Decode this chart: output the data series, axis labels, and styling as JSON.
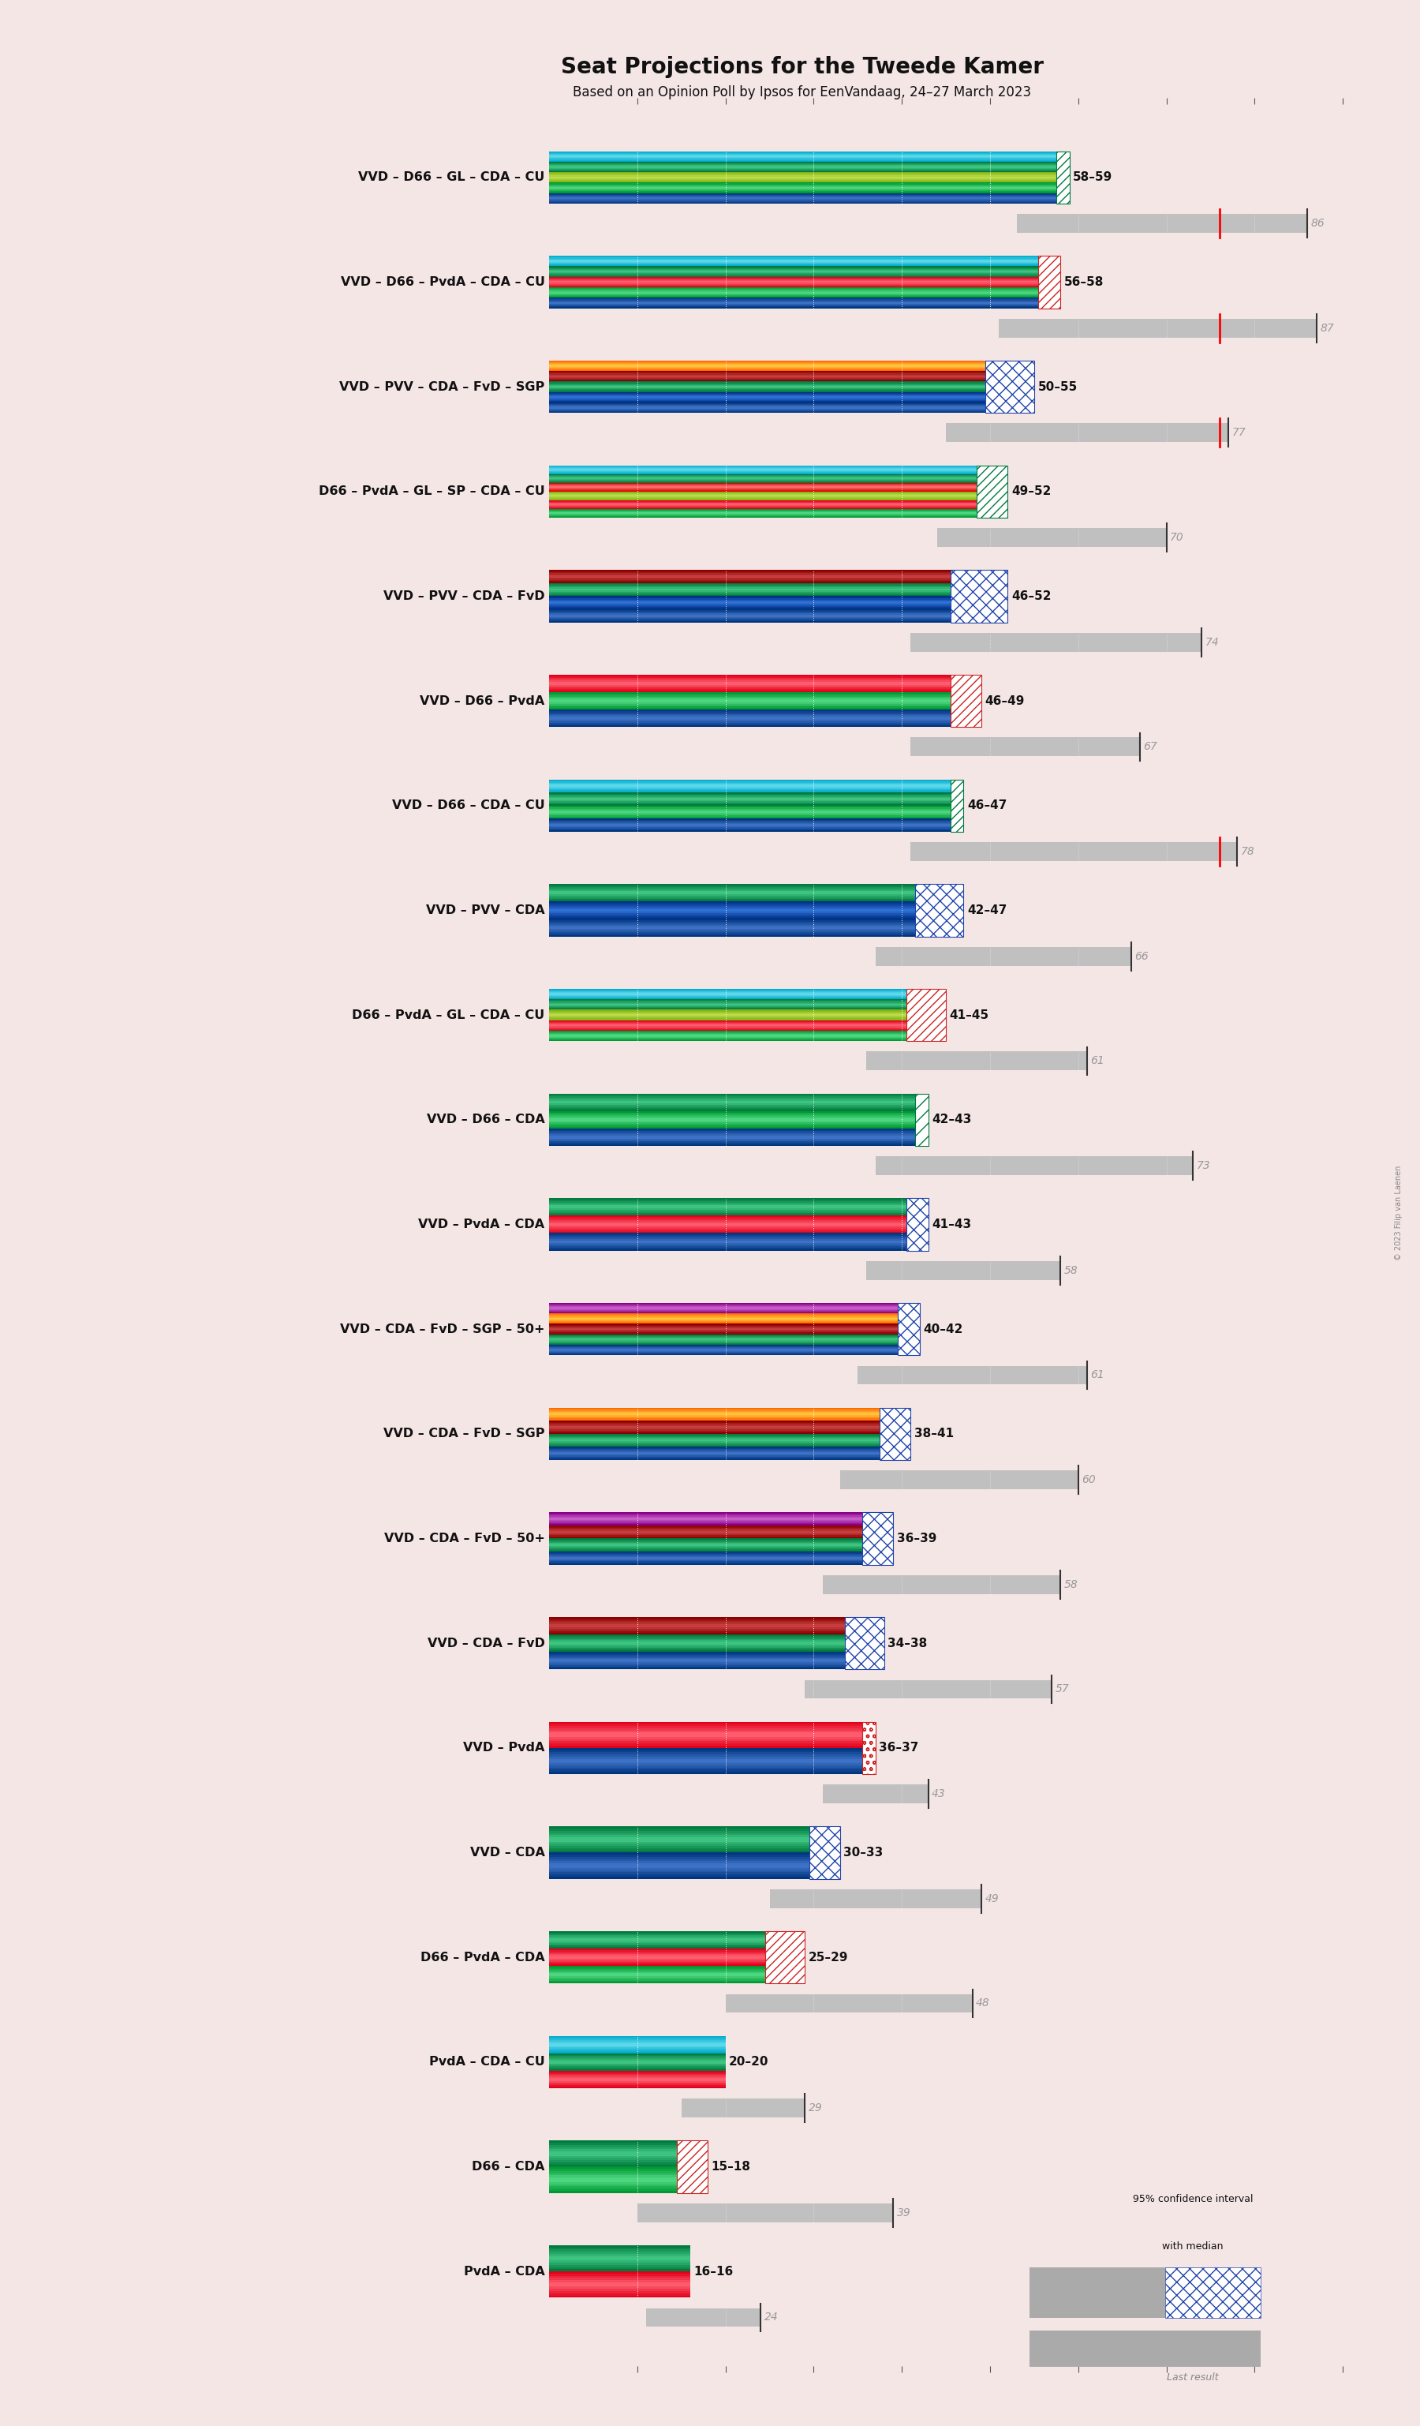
{
  "title": "Seat Projections for the Tweede Kamer",
  "subtitle": "Based on an Opinion Poll by Ipsos for EenVandaag, 24–27 March 2023",
  "bg": "#f5e6e6",
  "coalitions": [
    {
      "label": "VVD – D66 – GL – CDA – CU",
      "lo": 58,
      "hi": 59,
      "last": 86,
      "ci_lo": 53,
      "ci_hi": 86,
      "red_mark": true,
      "parties": [
        "VVD",
        "D66",
        "GL",
        "CDA",
        "CU"
      ],
      "pat": "hatch_green"
    },
    {
      "label": "VVD – D66 – PvdA – CDA – CU",
      "lo": 56,
      "hi": 58,
      "last": 87,
      "ci_lo": 51,
      "ci_hi": 87,
      "red_mark": true,
      "parties": [
        "VVD",
        "D66",
        "PvdA",
        "CDA",
        "CU"
      ],
      "pat": "hatch_red"
    },
    {
      "label": "VVD – PVV – CDA – FvD – SGP",
      "lo": 50,
      "hi": 55,
      "last": 77,
      "ci_lo": 45,
      "ci_hi": 77,
      "red_mark": true,
      "parties": [
        "VVD",
        "PVV",
        "CDA",
        "FvD",
        "SGP"
      ],
      "pat": "cross_blue"
    },
    {
      "label": "D66 – PvdA – GL – SP – CDA – CU",
      "lo": 49,
      "hi": 52,
      "last": 70,
      "ci_lo": 44,
      "ci_hi": 70,
      "red_mark": false,
      "parties": [
        "D66",
        "PvdA",
        "GL",
        "SP",
        "CDA",
        "CU"
      ],
      "pat": "hatch_green"
    },
    {
      "label": "VVD – PVV – CDA – FvD",
      "lo": 46,
      "hi": 52,
      "last": 74,
      "ci_lo": 41,
      "ci_hi": 74,
      "red_mark": false,
      "parties": [
        "VVD",
        "PVV",
        "CDA",
        "FvD"
      ],
      "pat": "cross_blue"
    },
    {
      "label": "VVD – D66 – PvdA",
      "lo": 46,
      "hi": 49,
      "last": 67,
      "ci_lo": 41,
      "ci_hi": 67,
      "red_mark": false,
      "parties": [
        "VVD",
        "D66",
        "PvdA"
      ],
      "pat": "hatch_green_diag"
    },
    {
      "label": "VVD – D66 – CDA – CU",
      "lo": 46,
      "hi": 47,
      "last": 78,
      "ci_lo": 41,
      "ci_hi": 78,
      "red_mark": true,
      "parties": [
        "VVD",
        "D66",
        "CDA",
        "CU"
      ],
      "pat": "hatch_green"
    },
    {
      "label": "VVD – PVV – CDA",
      "lo": 42,
      "hi": 47,
      "last": 66,
      "ci_lo": 37,
      "ci_hi": 66,
      "red_mark": false,
      "parties": [
        "VVD",
        "PVV",
        "CDA"
      ],
      "pat": "cross_blue"
    },
    {
      "label": "D66 – PvdA – GL – CDA – CU",
      "lo": 41,
      "hi": 45,
      "last": 61,
      "ci_lo": 36,
      "ci_hi": 61,
      "red_mark": false,
      "parties": [
        "D66",
        "PvdA",
        "GL",
        "CDA",
        "CU"
      ],
      "pat": "hatch_green_diag"
    },
    {
      "label": "VVD – D66 – CDA",
      "lo": 42,
      "hi": 43,
      "last": 73,
      "ci_lo": 37,
      "ci_hi": 73,
      "red_mark": false,
      "parties": [
        "VVD",
        "D66",
        "CDA"
      ],
      "pat": "hatch_green_sm"
    },
    {
      "label": "VVD – PvdA – CDA",
      "lo": 41,
      "hi": 43,
      "last": 58,
      "ci_lo": 36,
      "ci_hi": 58,
      "red_mark": false,
      "parties": [
        "VVD",
        "PvdA",
        "CDA"
      ],
      "pat": "cross_blue"
    },
    {
      "label": "VVD – CDA – FvD – SGP – 50+",
      "lo": 40,
      "hi": 42,
      "last": 61,
      "ci_lo": 35,
      "ci_hi": 61,
      "red_mark": false,
      "parties": [
        "VVD",
        "CDA",
        "FvD",
        "SGP",
        "50+"
      ],
      "pat": "cross_blue"
    },
    {
      "label": "VVD – CDA – FvD – SGP",
      "lo": 38,
      "hi": 41,
      "last": 60,
      "ci_lo": 33,
      "ci_hi": 60,
      "red_mark": false,
      "parties": [
        "VVD",
        "CDA",
        "FvD",
        "SGP"
      ],
      "pat": "cross_blue"
    },
    {
      "label": "VVD – CDA – FvD – 50+",
      "lo": 36,
      "hi": 39,
      "last": 58,
      "ci_lo": 31,
      "ci_hi": 58,
      "red_mark": false,
      "parties": [
        "VVD",
        "CDA",
        "FvD",
        "50+"
      ],
      "pat": "cross_blue"
    },
    {
      "label": "VVD – CDA – FvD",
      "lo": 34,
      "hi": 38,
      "last": 57,
      "ci_lo": 29,
      "ci_hi": 57,
      "red_mark": false,
      "parties": [
        "VVD",
        "CDA",
        "FvD"
      ],
      "pat": "cross_blue"
    },
    {
      "label": "VVD – PvdA",
      "lo": 36,
      "hi": 37,
      "last": 43,
      "ci_lo": 31,
      "ci_hi": 43,
      "red_mark": false,
      "parties": [
        "VVD",
        "PvdA"
      ],
      "pat": "dot_red"
    },
    {
      "label": "VVD – CDA",
      "lo": 30,
      "hi": 33,
      "last": 49,
      "ci_lo": 25,
      "ci_hi": 49,
      "red_mark": false,
      "parties": [
        "VVD",
        "CDA"
      ],
      "pat": "cross_blue"
    },
    {
      "label": "D66 – PvdA – CDA",
      "lo": 25,
      "hi": 29,
      "last": 48,
      "ci_lo": 20,
      "ci_hi": 48,
      "red_mark": false,
      "parties": [
        "D66",
        "PvdA",
        "CDA"
      ],
      "pat": "hatch_green_diag"
    },
    {
      "label": "PvdA – CDA – CU",
      "lo": 20,
      "hi": 20,
      "last": 29,
      "ci_lo": 15,
      "ci_hi": 29,
      "red_mark": false,
      "parties": [
        "PvdA",
        "CDA",
        "CU"
      ],
      "pat": "none"
    },
    {
      "label": "D66 – CDA",
      "lo": 15,
      "hi": 18,
      "last": 39,
      "ci_lo": 10,
      "ci_hi": 39,
      "red_mark": false,
      "parties": [
        "D66",
        "CDA"
      ],
      "pat": "hatch_green_diag"
    },
    {
      "label": "PvdA – CDA",
      "lo": 16,
      "hi": 16,
      "last": 24,
      "ci_lo": 11,
      "ci_hi": 24,
      "red_mark": false,
      "parties": [
        "PvdA",
        "CDA"
      ],
      "pat": "none"
    }
  ],
  "party_colors": {
    "VVD": "#003580",
    "D66": "#009933",
    "GL": "#84b414",
    "PvdA": "#e3001b",
    "CDA": "#007a3e",
    "CU": "#00aacc",
    "PVV": "#003087",
    "FvD": "#8b0000",
    "SGP": "#ff6600",
    "SP": "#dd0000",
    "50+": "#8b008b"
  },
  "party_colors_mid": {
    "VVD": "#1a4a9a",
    "D66": "#22bb55",
    "GL": "#a0c830",
    "PvdA": "#ff2244",
    "CDA": "#229955",
    "CU": "#22bbdd",
    "PVV": "#1155bb",
    "FvD": "#aa2222",
    "SGP": "#ff8822",
    "SP": "#ff3333",
    "50+": "#aa22aa"
  },
  "party_colors_light": {
    "VVD": "#4477cc",
    "D66": "#55dd88",
    "GL": "#c0e050",
    "PvdA": "#ff6677",
    "CDA": "#44cc88",
    "CU": "#66ddee",
    "PVV": "#3377dd",
    "FvD": "#cc4444",
    "SGP": "#ffcc44",
    "SP": "#ff7777",
    "50+": "#cc66cc"
  },
  "majority": 76,
  "xmax": 95,
  "n_stripes": 12
}
